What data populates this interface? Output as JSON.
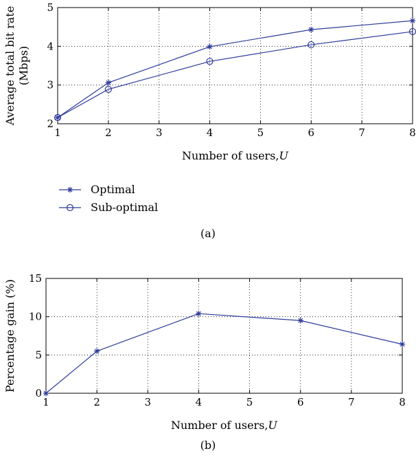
{
  "chart_data": [
    {
      "type": "line",
      "panel_label": "(a)",
      "xlabel": "Number of users, U",
      "xlabel_text": "Number of users,",
      "xlabel_var": "U",
      "ylabel": [
        "Average total bit rate",
        "(Mbps)"
      ],
      "xlim": [
        1,
        8
      ],
      "ylim": [
        2,
        5
      ],
      "xticks": [
        1,
        2,
        3,
        4,
        5,
        6,
        7,
        8
      ],
      "yticks": [
        2,
        3,
        4,
        5
      ],
      "grid": true,
      "legend": "below",
      "series": [
        {
          "name": "Optimal",
          "marker": "asterisk",
          "x": [
            1,
            2,
            4,
            6,
            8
          ],
          "y": [
            2.16,
            3.06,
            3.99,
            4.43,
            4.66
          ]
        },
        {
          "name": "Sub-optimal",
          "marker": "circle",
          "x": [
            1,
            2,
            4,
            6,
            8
          ],
          "y": [
            2.16,
            2.89,
            3.61,
            4.04,
            4.38
          ]
        }
      ]
    },
    {
      "type": "line",
      "panel_label": "(b)",
      "xlabel": "Number of users, U",
      "xlabel_text": "Number of users,",
      "xlabel_var": "U",
      "ylabel": [
        "Percentage gain (%)"
      ],
      "xlim": [
        1,
        8
      ],
      "ylim": [
        0,
        15
      ],
      "xticks": [
        1,
        2,
        3,
        4,
        5,
        6,
        7,
        8
      ],
      "yticks": [
        0,
        5,
        10,
        15
      ],
      "grid": true,
      "series": [
        {
          "marker": "asterisk",
          "x": [
            1,
            2,
            4,
            6,
            8
          ],
          "y": [
            0,
            5.5,
            10.4,
            9.5,
            6.4
          ]
        }
      ]
    }
  ],
  "colors": {
    "line": "#2b3a9a",
    "axis": "#000000",
    "grid": "#000000"
  }
}
